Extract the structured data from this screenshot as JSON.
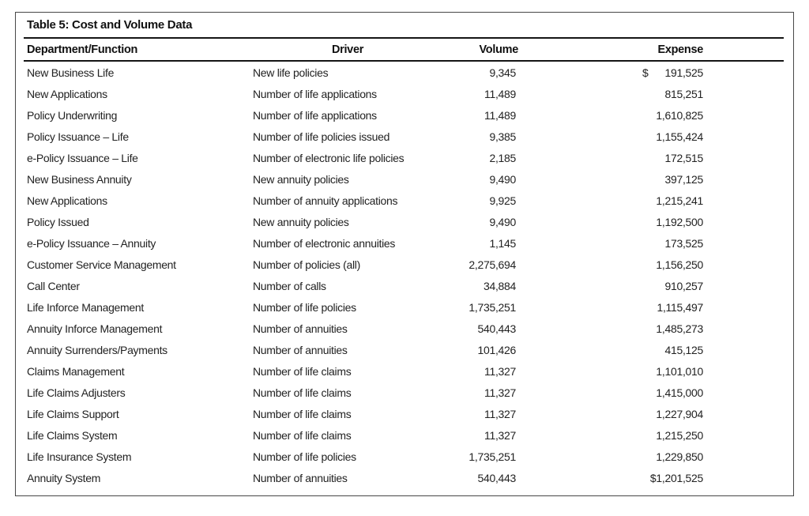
{
  "table": {
    "title": "Table 5: Cost and Volume Data",
    "columns": [
      "Department/Function",
      "Driver",
      "Volume",
      "Expense"
    ],
    "rows": [
      {
        "dept": "New Business Life",
        "driver": "New life policies",
        "volume": "9,345",
        "currency": "$",
        "expense": "191,525"
      },
      {
        "dept": "New Applications",
        "driver": "Number of life applications",
        "volume": "11,489",
        "currency": "",
        "expense": "815,251"
      },
      {
        "dept": "Policy Underwriting",
        "driver": "Number of life applications",
        "volume": "11,489",
        "currency": "",
        "expense": "1,610,825"
      },
      {
        "dept": "Policy Issuance – Life",
        "driver": "Number of life policies issued",
        "volume": "9,385",
        "currency": "",
        "expense": "1,155,424"
      },
      {
        "dept": "e-Policy Issuance – Life",
        "driver": "Number of electronic life policies",
        "volume": "2,185",
        "currency": "",
        "expense": "172,515"
      },
      {
        "dept": "New Business Annuity",
        "driver": "New annuity policies",
        "volume": "9,490",
        "currency": "",
        "expense": "397,125"
      },
      {
        "dept": "New Applications",
        "driver": "Number of annuity applications",
        "volume": "9,925",
        "currency": "",
        "expense": "1,215,241"
      },
      {
        "dept": "Policy Issued",
        "driver": "New annuity policies",
        "volume": "9,490",
        "currency": "",
        "expense": "1,192,500"
      },
      {
        "dept": "e-Policy Issuance – Annuity",
        "driver": "Number of electronic annuities",
        "volume": "1,145",
        "currency": "",
        "expense": "173,525"
      },
      {
        "dept": "Customer Service Management",
        "driver": "Number of policies (all)",
        "volume": "2,275,694",
        "currency": "",
        "expense": "1,156,250"
      },
      {
        "dept": "Call Center",
        "driver": "Number of calls",
        "volume": "34,884",
        "currency": "",
        "expense": "910,257"
      },
      {
        "dept": "Life Inforce Management",
        "driver": "Number of life policies",
        "volume": "1,735,251",
        "currency": "",
        "expense": "1,115,497"
      },
      {
        "dept": "Annuity Inforce Management",
        "driver": "Number of annuities",
        "volume": "540,443",
        "currency": "",
        "expense": "1,485,273"
      },
      {
        "dept": "Annuity Surrenders/Payments",
        "driver": "Number of annuities",
        "volume": "101,426",
        "currency": "",
        "expense": "415,125"
      },
      {
        "dept": "Claims Management",
        "driver": "Number of life claims",
        "volume": "11,327",
        "currency": "",
        "expense": "1,101,010"
      },
      {
        "dept": "Life Claims Adjusters",
        "driver": "Number of life claims",
        "volume": "11,327",
        "currency": "",
        "expense": "1,415,000"
      },
      {
        "dept": "Life Claims Support",
        "driver": "Number of life claims",
        "volume": "11,327",
        "currency": "",
        "expense": "1,227,904"
      },
      {
        "dept": "Life Claims System",
        "driver": "Number of life claims",
        "volume": "11,327",
        "currency": "",
        "expense": "1,215,250"
      },
      {
        "dept": "Life Insurance System",
        "driver": "Number of life policies",
        "volume": "1,735,251",
        "currency": "",
        "expense": "1,229,850"
      },
      {
        "dept": "Annuity System",
        "driver": "Number of annuities",
        "volume": "540,443",
        "currency": "",
        "expense": "$1,201,525"
      }
    ]
  }
}
